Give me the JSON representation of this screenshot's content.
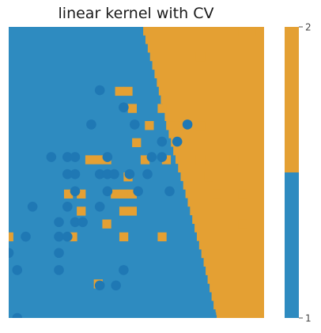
{
  "chart_data": {
    "type": "scatter",
    "title": "linear kernel with CV",
    "xlabel": "",
    "ylabel": "",
    "grid": false,
    "xlim": [
      0,
      30
    ],
    "ylim": [
      0,
      34
    ],
    "class_colors": {
      "1": "#2e8bc0",
      "2": "#e4a033"
    },
    "background_note": "decision regions: class 1 left, class 2 right",
    "boundary": [
      {
        "y": 34.0,
        "x": 15.8
      },
      {
        "y": 31.0,
        "x": 16.6
      },
      {
        "y": 28.0,
        "x": 17.4
      },
      {
        "y": 25.0,
        "x": 18.1
      },
      {
        "y": 22.0,
        "x": 18.8
      },
      {
        "y": 19.0,
        "x": 19.6
      },
      {
        "y": 16.0,
        "x": 20.5
      },
      {
        "y": 13.0,
        "x": 21.3
      },
      {
        "y": 10.0,
        "x": 22.1
      },
      {
        "y": 7.0,
        "x": 22.9
      },
      {
        "y": 4.0,
        "x": 23.6
      },
      {
        "y": 1.0,
        "x": 24.3
      },
      {
        "y": 0.0,
        "x": 24.5
      }
    ],
    "patches": [
      {
        "x": 27.5,
        "y": 33.5
      },
      {
        "x": 29.5,
        "y": 33.5
      },
      {
        "x": 22.5,
        "y": 30.5
      },
      {
        "x": 13.0,
        "y": 26.5
      },
      {
        "x": 14.0,
        "y": 26.5
      },
      {
        "x": 14.5,
        "y": 24.5
      },
      {
        "x": 18.0,
        "y": 24.5
      },
      {
        "x": 16.5,
        "y": 22.5
      },
      {
        "x": 19.0,
        "y": 22.5
      },
      {
        "x": 20.5,
        "y": 22.5
      },
      {
        "x": 22.5,
        "y": 22.5
      },
      {
        "x": 15.0,
        "y": 20.5
      },
      {
        "x": 9.5,
        "y": 18.5
      },
      {
        "x": 10.5,
        "y": 18.5
      },
      {
        "x": 11.5,
        "y": 18.5
      },
      {
        "x": 16.0,
        "y": 18.5
      },
      {
        "x": 18.5,
        "y": 18.5
      },
      {
        "x": 21.5,
        "y": 18.5
      },
      {
        "x": 22.5,
        "y": 18.5
      },
      {
        "x": 26.5,
        "y": 18.5
      },
      {
        "x": 27.5,
        "y": 18.5
      },
      {
        "x": 14.0,
        "y": 16.5
      },
      {
        "x": 23.5,
        "y": 16.5
      },
      {
        "x": 7.0,
        "y": 14.5
      },
      {
        "x": 8.5,
        "y": 14.5
      },
      {
        "x": 12.5,
        "y": 14.5
      },
      {
        "x": 13.5,
        "y": 14.5
      },
      {
        "x": 14.5,
        "y": 14.5
      },
      {
        "x": 24.5,
        "y": 14.5
      },
      {
        "x": 27.5,
        "y": 14.5
      },
      {
        "x": 13.5,
        "y": 12.5
      },
      {
        "x": 14.5,
        "y": 12.5
      },
      {
        "x": 8.5,
        "y": 12.5
      },
      {
        "x": 11.5,
        "y": 11.0
      },
      {
        "x": 27.5,
        "y": 11.0
      },
      {
        "x": 0.0,
        "y": 9.5
      },
      {
        "x": 7.5,
        "y": 9.5
      },
      {
        "x": 13.5,
        "y": 9.5
      },
      {
        "x": 18.0,
        "y": 9.5
      },
      {
        "x": 10.5,
        "y": 4.0
      }
    ],
    "points": [
      {
        "x": 10.7,
        "y": 26.6
      },
      {
        "x": 13.5,
        "y": 24.6
      },
      {
        "x": 9.7,
        "y": 22.6
      },
      {
        "x": 14.8,
        "y": 22.6
      },
      {
        "x": 21.0,
        "y": 22.6
      },
      {
        "x": 18.0,
        "y": 20.6
      },
      {
        "x": 19.8,
        "y": 20.6
      },
      {
        "x": 5.0,
        "y": 18.8
      },
      {
        "x": 6.9,
        "y": 18.8
      },
      {
        "x": 7.8,
        "y": 18.8
      },
      {
        "x": 11.6,
        "y": 18.8
      },
      {
        "x": 16.8,
        "y": 18.8
      },
      {
        "x": 18.0,
        "y": 18.8
      },
      {
        "x": 6.9,
        "y": 16.8
      },
      {
        "x": 7.8,
        "y": 16.8
      },
      {
        "x": 10.7,
        "y": 16.8
      },
      {
        "x": 11.6,
        "y": 16.8
      },
      {
        "x": 12.4,
        "y": 16.8
      },
      {
        "x": 14.2,
        "y": 16.8
      },
      {
        "x": 16.3,
        "y": 16.8
      },
      {
        "x": 7.8,
        "y": 14.8
      },
      {
        "x": 11.6,
        "y": 14.8
      },
      {
        "x": 15.2,
        "y": 14.8
      },
      {
        "x": 18.9,
        "y": 14.8
      },
      {
        "x": 2.8,
        "y": 13.0
      },
      {
        "x": 6.9,
        "y": 13.0
      },
      {
        "x": 10.7,
        "y": 13.0
      },
      {
        "x": 5.9,
        "y": 11.2
      },
      {
        "x": 7.8,
        "y": 11.2
      },
      {
        "x": 8.7,
        "y": 11.2
      },
      {
        "x": 2.0,
        "y": 9.5
      },
      {
        "x": 5.9,
        "y": 9.5
      },
      {
        "x": 6.9,
        "y": 9.5
      },
      {
        "x": 0.0,
        "y": 7.6
      },
      {
        "x": 5.9,
        "y": 7.6
      },
      {
        "x": 1.0,
        "y": 5.6
      },
      {
        "x": 5.9,
        "y": 5.6
      },
      {
        "x": 13.5,
        "y": 5.6
      },
      {
        "x": 10.7,
        "y": 3.8
      },
      {
        "x": 12.6,
        "y": 3.8
      },
      {
        "x": 1.0,
        "y": 0.0
      }
    ],
    "colorbar": {
      "ticks": [
        "1",
        "2"
      ]
    }
  }
}
